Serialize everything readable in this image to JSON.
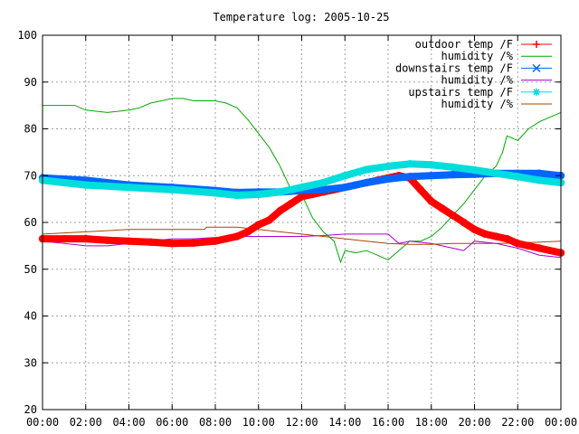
{
  "chart_data": {
    "type": "line",
    "title": "Temperature log: 2005-10-25",
    "xlabel": "",
    "ylabel": "",
    "xlim": [
      0,
      24
    ],
    "ylim": [
      20,
      100
    ],
    "grid": true,
    "legend_position": "top-right",
    "x_ticks": [
      "00:00",
      "02:00",
      "04:00",
      "06:00",
      "08:00",
      "10:00",
      "12:00",
      "14:00",
      "16:00",
      "18:00",
      "20:00",
      "22:00",
      "00:00"
    ],
    "y_ticks": [
      20,
      30,
      40,
      50,
      60,
      70,
      80,
      90,
      100
    ],
    "series": [
      {
        "name": "outdoor temp /F",
        "color": "#ff0000",
        "marker": "plus",
        "x": [
          0,
          1,
          2,
          3,
          4,
          5,
          6,
          7,
          8,
          9,
          9.5,
          10,
          10.5,
          11,
          11.5,
          12,
          12.5,
          13,
          13.5,
          14,
          14.5,
          15,
          15.5,
          16,
          16.5,
          17,
          17.5,
          18,
          18.5,
          19,
          19.5,
          20,
          20.5,
          21,
          21.5,
          22,
          22.5,
          23,
          24
        ],
        "y": [
          56.5,
          56.5,
          56.5,
          56.2,
          56,
          55.8,
          55.5,
          55.6,
          56,
          57,
          58,
          59.5,
          60.5,
          62.5,
          64,
          65.5,
          66,
          66.5,
          67,
          67.5,
          68,
          68.5,
          69,
          69.5,
          70,
          69.5,
          67,
          64.5,
          63,
          61.5,
          60,
          58.5,
          57.5,
          57,
          56.5,
          55.5,
          55,
          54.5,
          53.5
        ]
      },
      {
        "name": "humidity /%",
        "color": "#00aa00",
        "marker": "none",
        "x": [
          0,
          1,
          1.5,
          2,
          3,
          4,
          4.5,
          5,
          5.5,
          6,
          6.5,
          7,
          8,
          8.5,
          9,
          9.5,
          10,
          10.5,
          11,
          11.5,
          12,
          12.5,
          13,
          13.5,
          13.8,
          14,
          14.5,
          15,
          15.5,
          16,
          16.5,
          17,
          17.5,
          18,
          18.5,
          19,
          19.5,
          20,
          20.5,
          21,
          21.3,
          21.5,
          22,
          22.5,
          23,
          24
        ],
        "y": [
          85,
          85,
          85,
          84,
          83.5,
          84,
          84.5,
          85.5,
          86,
          86.5,
          86.5,
          86,
          86,
          85.5,
          84.5,
          82,
          79,
          76,
          72,
          67,
          66,
          61,
          58,
          56,
          51.5,
          54,
          53.5,
          54,
          53,
          52,
          54,
          56,
          56,
          57,
          59,
          61.5,
          64,
          67,
          70,
          72,
          75,
          78.5,
          77.5,
          80,
          81.5,
          83.5
        ]
      },
      {
        "name": "downstairs temp /F",
        "color": "#0066ff",
        "marker": "x",
        "x": [
          0,
          2,
          4,
          6,
          8,
          9,
          10,
          11,
          12,
          13,
          14,
          15,
          16,
          17,
          18,
          19,
          20,
          21,
          22,
          23,
          24
        ],
        "y": [
          69.5,
          69,
          68,
          67.5,
          66.8,
          66.4,
          66.5,
          66.5,
          66.8,
          67,
          67.5,
          68.5,
          69.3,
          69.8,
          70,
          70.2,
          70.3,
          70.5,
          70.5,
          70.5,
          70
        ]
      },
      {
        "name": "humidity /%",
        "color": "#aa00cc",
        "marker": "none",
        "x": [
          0,
          1,
          2,
          3,
          4,
          5,
          6,
          7,
          8,
          9,
          10,
          11,
          12,
          13,
          14,
          15,
          16,
          16.5,
          17,
          18,
          19,
          19.5,
          20,
          21,
          22,
          23,
          24
        ],
        "y": [
          56,
          55.5,
          55,
          55,
          55.5,
          56,
          56.5,
          56.5,
          56.8,
          57,
          57,
          57,
          57,
          57.2,
          57.5,
          57.5,
          57.5,
          55.5,
          56,
          55.5,
          54.5,
          54,
          56,
          55.5,
          54.5,
          53,
          52.5
        ]
      },
      {
        "name": "upstairs temp /F",
        "color": "#00dddd",
        "marker": "star",
        "x": [
          0,
          2,
          4,
          6,
          8,
          9,
          10,
          11,
          12,
          13,
          14,
          15,
          16,
          17,
          18,
          19,
          20,
          21,
          22,
          23,
          24
        ],
        "y": [
          69,
          68,
          67.5,
          67,
          66.3,
          65.8,
          66,
          66.5,
          67.5,
          68.5,
          70,
          71.3,
          72,
          72.5,
          72.3,
          71.8,
          71.2,
          70.5,
          69.8,
          69,
          68.5
        ]
      },
      {
        "name": "humidity /%",
        "color": "#aa4400",
        "marker": "none",
        "x": [
          0,
          2,
          4,
          6,
          7.5,
          7.6,
          9,
          10,
          11,
          12,
          13,
          14,
          15,
          16,
          17,
          18,
          19,
          20,
          21,
          22,
          23,
          24
        ],
        "y": [
          57.5,
          58,
          58.5,
          58.5,
          58.5,
          59,
          59,
          58.5,
          58,
          57.5,
          57,
          56.5,
          56,
          55.5,
          55.3,
          55.3,
          55.5,
          55.5,
          55.5,
          55.6,
          55.8,
          56
        ]
      }
    ]
  }
}
